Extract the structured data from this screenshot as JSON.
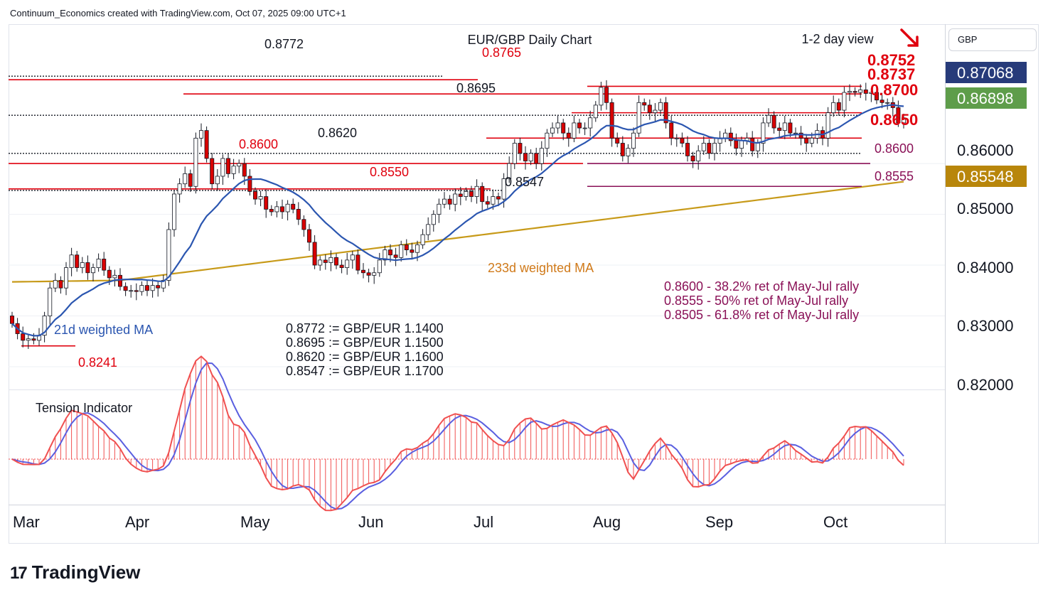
{
  "header": "Continuum_Economics created with TradingView.com, Oct 07, 2025 09:00 UTC+1",
  "currency": "GBP",
  "colors": {
    "up": "#ffffff",
    "down": "#d80000",
    "candle_border": "#131722",
    "resistance": "#e0000e",
    "support_purple": "#8a1157",
    "ma21": "#2b56b0",
    "ma233": "#c79a19",
    "badge_blue": "#273b7a",
    "badge_green": "#5e9d4a",
    "badge_gold": "#b8860b",
    "tension_red": "#f05050",
    "tension_blue": "#5a5fe0"
  },
  "chart_data": {
    "type": "candlestick",
    "title": "EUR/GBP Daily Chart",
    "view": "1-2 day view",
    "view_direction": "down",
    "ylim": [
      0.8165,
      0.881
    ],
    "price_ticks": [
      "0.86000",
      "0.85000",
      "0.84000",
      "0.83000",
      "0.82000"
    ],
    "price_tick_values": [
      0.86,
      0.85,
      0.84,
      0.83,
      0.82
    ],
    "months": [
      "Mar",
      "Apr",
      "May",
      "Jun",
      "Jul",
      "Aug",
      "Sep",
      "Oct"
    ],
    "month_start_index": [
      2,
      23,
      43,
      65,
      86,
      108,
      129,
      151
    ],
    "badges": [
      {
        "label": "0.87068",
        "color": "#273b7a"
      },
      {
        "label": "0.86898",
        "color": "#5e9d4a"
      },
      {
        "label": "0.85548",
        "color": "#b8860b"
      }
    ],
    "levels": [
      {
        "value": 0.8772,
        "label": "0.8772",
        "style": "dotted",
        "color": "#131722"
      },
      {
        "value": 0.8765,
        "label": "0.8765",
        "style": "solid",
        "color": "#e0000e"
      },
      {
        "value": 0.8752,
        "label": "0.8752",
        "style": "solid",
        "color": "#e0000e"
      },
      {
        "value": 0.8737,
        "label": "0.8737",
        "style": "solid",
        "color": "#e0000e"
      },
      {
        "value": 0.87,
        "label": "0.8700",
        "style": "solid",
        "color": "#e0000e"
      },
      {
        "value": 0.8695,
        "label": "0.8695",
        "style": "dotted",
        "color": "#131722"
      },
      {
        "value": 0.865,
        "label": "0.8650",
        "style": "solid",
        "color": "#e0000e"
      },
      {
        "value": 0.862,
        "label": "0.8620",
        "style": "dotted",
        "color": "#131722"
      },
      {
        "value": 0.86,
        "label": "0.8600",
        "style": "solid",
        "color": "#e0000e"
      },
      {
        "value": 0.86,
        "label": "0.8600",
        "style": "solid",
        "color": "#8a1157"
      },
      {
        "value": 0.8555,
        "label": "0.8555",
        "style": "solid",
        "color": "#8a1157"
      },
      {
        "value": 0.855,
        "label": "0.8550",
        "style": "solid",
        "color": "#e0000e"
      },
      {
        "value": 0.8547,
        "label": "0.8547",
        "style": "dotted",
        "color": "#131722"
      },
      {
        "value": 0.8241,
        "label": "0.8241",
        "style": "solid",
        "color": "#e0000e"
      }
    ],
    "annotations": {
      "ma21": "21d weighted MA",
      "ma233": "233d weighted MA",
      "tension": "Tension Indicator",
      "fib": [
        "0.8600 - 38.2% ret of May-Jul rally",
        "0.8555 - 50% ret of May-Jul rally",
        "0.8505 - 61.8% ret of May-Jul rally"
      ],
      "conversions": [
        "0.8772 := GBP/EUR 1.1400",
        "0.8695 := GBP/EUR 1.1500",
        "0.8620 := GBP/EUR 1.1600",
        "0.8547 := GBP/EUR 1.1700"
      ]
    },
    "closes": [
      0.8285,
      0.8265,
      0.8252,
      0.8255,
      0.8252,
      0.8262,
      0.83,
      0.8355,
      0.837,
      0.8355,
      0.8395,
      0.842,
      0.8395,
      0.8405,
      0.8385,
      0.8395,
      0.8412,
      0.839,
      0.8375,
      0.838,
      0.8358,
      0.835,
      0.835,
      0.8348,
      0.836,
      0.835,
      0.836,
      0.8355,
      0.837,
      0.847,
      0.854,
      0.856,
      0.858,
      0.8555,
      0.865,
      0.8665,
      0.861,
      0.856,
      0.8575,
      0.861,
      0.858,
      0.8595,
      0.86,
      0.8575,
      0.8545,
      0.853,
      0.8535,
      0.851,
      0.8505,
      0.8515,
      0.8505,
      0.852,
      0.851,
      0.849,
      0.847,
      0.8445,
      0.84,
      0.841,
      0.8405,
      0.8415,
      0.84,
      0.8395,
      0.841,
      0.842,
      0.839,
      0.8385,
      0.838,
      0.8385,
      0.841,
      0.843,
      0.842,
      0.8415,
      0.844,
      0.843,
      0.8425,
      0.844,
      0.846,
      0.848,
      0.85,
      0.852,
      0.853,
      0.852,
      0.854,
      0.8535,
      0.8545,
      0.8535,
      0.8555,
      0.8525,
      0.852,
      0.8535,
      0.853,
      0.857,
      0.86,
      0.864,
      0.862,
      0.8605,
      0.862,
      0.86,
      0.863,
      0.866,
      0.867,
      0.868,
      0.866,
      0.865,
      0.868,
      0.867,
      0.867,
      0.869,
      0.8715,
      0.875,
      0.872,
      0.865,
      0.864,
      0.8615,
      0.863,
      0.866,
      0.872,
      0.8715,
      0.87,
      0.8705,
      0.872,
      0.868,
      0.865,
      0.865,
      0.864,
      0.8615,
      0.8605,
      0.8625,
      0.864,
      0.862,
      0.864,
      0.865,
      0.866,
      0.8645,
      0.863,
      0.8645,
      0.865,
      0.8625,
      0.864,
      0.868,
      0.8695,
      0.867,
      0.8665,
      0.868,
      0.866,
      0.866,
      0.865,
      0.864,
      0.865,
      0.8665,
      0.865,
      0.87,
      0.872,
      0.8705,
      0.874,
      0.8742,
      0.874,
      0.8745,
      0.8738,
      0.874,
      0.8725,
      0.872,
      0.872,
      0.871,
      0.868,
      0.869
    ]
  }
}
